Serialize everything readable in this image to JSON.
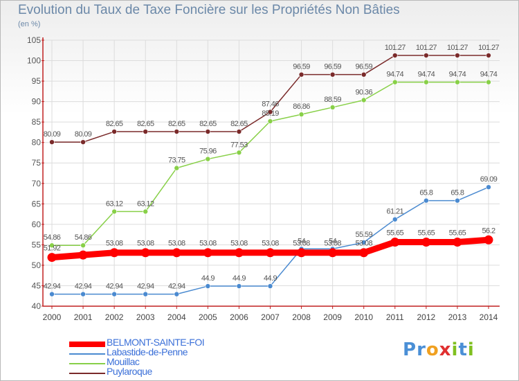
{
  "title": "Evolution du Taux de Taxe Foncière sur les Propriétés Non Bâties",
  "subtitle": "(en %)",
  "logo": {
    "text": "Proxiti",
    "letters": [
      "P",
      "r",
      "o",
      "x",
      "i",
      "t",
      "i"
    ],
    "colors": [
      "#4a8fd6",
      "#4a8fd6",
      "#f0a020",
      "#e03030",
      "#80c020",
      "#4a8fd6",
      "#80c020"
    ]
  },
  "chart_data": {
    "type": "line",
    "title": "Evolution du Taux de Taxe Foncière sur les Propriétés Non Bâties",
    "ylabel": "(en %)",
    "xlabel": "",
    "ylim": [
      40,
      105
    ],
    "yticks": [
      40,
      45,
      50,
      55,
      60,
      65,
      70,
      75,
      80,
      85,
      90,
      95,
      100,
      105
    ],
    "grid": true,
    "categories": [
      "2000",
      "2001",
      "2002",
      "2003",
      "2004",
      "2005",
      "2006",
      "2007",
      "2008",
      "2009",
      "2010",
      "2011",
      "2012",
      "2013",
      "2014"
    ],
    "series": [
      {
        "name": "BELMONT-SAINTE-FOI",
        "color": "#ff0000",
        "bold": true,
        "values": [
          51.92,
          52.5,
          53.08,
          53.08,
          53.08,
          53.08,
          53.08,
          53.08,
          53.08,
          53.08,
          53.08,
          55.65,
          55.65,
          55.65,
          56.2
        ],
        "labels": [
          "51.92",
          "",
          "53.08",
          "53.08",
          "53.08",
          "53.08",
          "53.08",
          "53.08",
          "53.08",
          "53.08",
          "53.08",
          "55.65",
          "55.65",
          "55.65",
          "56.2"
        ]
      },
      {
        "name": "Labastide-de-Penne",
        "color": "#4a8ad0",
        "values": [
          42.94,
          42.94,
          42.94,
          42.94,
          42.94,
          44.9,
          44.9,
          44.9,
          54.0,
          54.0,
          55.59,
          61.21,
          65.8,
          65.8,
          69.09
        ],
        "labels": [
          "42.94",
          "42.94",
          "42.94",
          "42.94",
          "42.94",
          "44.9",
          "44.9",
          "44.9",
          "54",
          "54",
          "55.59",
          "61.21",
          "65.8",
          "65.8",
          "69.09"
        ]
      },
      {
        "name": "Mouillac",
        "color": "#88d048",
        "values": [
          54.86,
          54.86,
          63.12,
          63.12,
          73.75,
          75.96,
          77.53,
          85.19,
          86.86,
          88.59,
          90.36,
          94.74,
          94.74,
          94.74,
          94.74
        ],
        "labels": [
          "54.86",
          "54.86",
          "63.12",
          "63.12",
          "73.75",
          "75.96",
          "77.53",
          "85.19",
          "86.86",
          "88.59",
          "90.36",
          "94.74",
          "94.74",
          "94.74",
          "94.74"
        ]
      },
      {
        "name": "Puylaroque",
        "color": "#7a2a2a",
        "values": [
          80.09,
          80.09,
          82.65,
          82.65,
          82.65,
          82.65,
          82.65,
          87.46,
          96.59,
          96.59,
          96.59,
          101.27,
          101.27,
          101.27,
          101.27
        ],
        "labels": [
          "80.09",
          "80.09",
          "82.65",
          "82.65",
          "82.65",
          "82.65",
          "82.65",
          "87.46",
          "96.59",
          "96.59",
          "96.59",
          "101.27",
          "101.27",
          "101.27",
          "101.27"
        ]
      }
    ],
    "legend": [
      "BELMONT-SAINTE-FOI",
      "Labastide-de-Penne",
      "Mouillac",
      "Puylaroque"
    ],
    "legend_position": "bottom-left"
  }
}
